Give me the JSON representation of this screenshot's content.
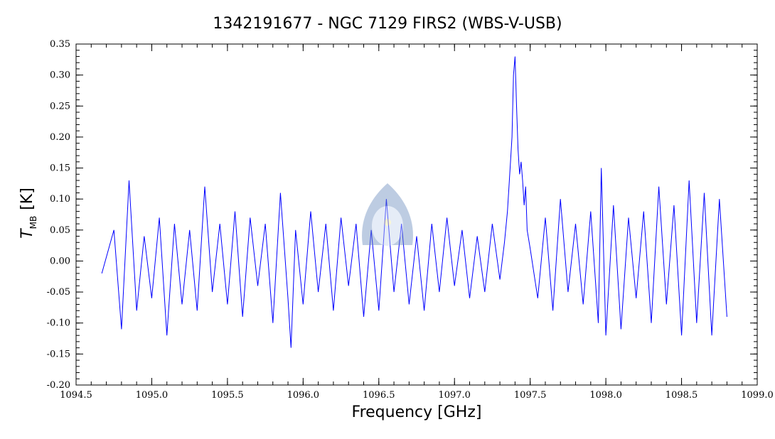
{
  "chart_data": {
    "type": "line",
    "title": "1342191677 - NGC 7129 FIRS2 (WBS-V-USB)",
    "xlabel": "Frequency [GHz]",
    "ylabel_main": "T",
    "ylabel_sub": "MB",
    "ylabel_unit": "[K]",
    "xlim": [
      1094.5,
      1099.0
    ],
    "ylim": [
      -0.2,
      0.35
    ],
    "x_ticks": [
      "1094.5",
      "1095.0",
      "1095.5",
      "1096.0",
      "1096.5",
      "1097.0",
      "1097.5",
      "1098.0",
      "1098.5",
      "1099.0"
    ],
    "y_ticks": [
      "-0.20",
      "-0.15",
      "-0.10",
      "-0.05",
      "0.00",
      "0.05",
      "0.10",
      "0.15",
      "0.20",
      "0.25",
      "0.30",
      "0.35"
    ],
    "grid": false,
    "series": [
      {
        "color": "#0000ff",
        "x": [
          1094.67,
          1094.75,
          1094.8,
          1094.85,
          1094.9,
          1094.95,
          1095.0,
          1095.05,
          1095.1,
          1095.15,
          1095.2,
          1095.25,
          1095.3,
          1095.35,
          1095.4,
          1095.45,
          1095.5,
          1095.55,
          1095.6,
          1095.65,
          1095.7,
          1095.75,
          1095.8,
          1095.85,
          1095.9,
          1095.92,
          1095.95,
          1096.0,
          1096.05,
          1096.1,
          1096.15,
          1096.2,
          1096.25,
          1096.3,
          1096.35,
          1096.4,
          1096.45,
          1096.5,
          1096.55,
          1096.6,
          1096.65,
          1096.7,
          1096.75,
          1096.8,
          1096.85,
          1096.9,
          1096.95,
          1097.0,
          1097.05,
          1097.1,
          1097.15,
          1097.2,
          1097.25,
          1097.3,
          1097.33,
          1097.35,
          1097.37,
          1097.38,
          1097.39,
          1097.4,
          1097.41,
          1097.42,
          1097.43,
          1097.44,
          1097.45,
          1097.46,
          1097.47,
          1097.48,
          1097.5,
          1097.55,
          1097.6,
          1097.65,
          1097.7,
          1097.75,
          1097.8,
          1097.85,
          1097.9,
          1097.95,
          1097.97,
          1098.0,
          1098.05,
          1098.1,
          1098.15,
          1098.2,
          1098.25,
          1098.3,
          1098.35,
          1098.4,
          1098.45,
          1098.5,
          1098.55,
          1098.6,
          1098.65,
          1098.7,
          1098.75,
          1098.8
        ],
        "y": [
          -0.02,
          0.05,
          -0.11,
          0.13,
          -0.08,
          0.04,
          -0.06,
          0.07,
          -0.12,
          0.06,
          -0.07,
          0.05,
          -0.08,
          0.12,
          -0.05,
          0.06,
          -0.07,
          0.08,
          -0.09,
          0.07,
          -0.04,
          0.06,
          -0.1,
          0.11,
          -0.06,
          -0.14,
          0.05,
          -0.07,
          0.08,
          -0.05,
          0.06,
          -0.08,
          0.07,
          -0.04,
          0.06,
          -0.09,
          0.05,
          -0.08,
          0.1,
          -0.05,
          0.06,
          -0.07,
          0.04,
          -0.08,
          0.06,
          -0.05,
          0.07,
          -0.04,
          0.05,
          -0.06,
          0.04,
          -0.05,
          0.06,
          -0.03,
          0.03,
          0.08,
          0.16,
          0.2,
          0.3,
          0.33,
          0.25,
          0.18,
          0.14,
          0.16,
          0.13,
          0.09,
          0.12,
          0.05,
          0.02,
          -0.06,
          0.07,
          -0.08,
          0.1,
          -0.05,
          0.06,
          -0.07,
          0.08,
          -0.1,
          0.15,
          -0.12,
          0.09,
          -0.11,
          0.07,
          -0.06,
          0.08,
          -0.1,
          0.12,
          -0.07,
          0.09,
          -0.12,
          0.13,
          -0.1,
          0.11,
          -0.12,
          0.1,
          -0.09
        ]
      }
    ]
  }
}
